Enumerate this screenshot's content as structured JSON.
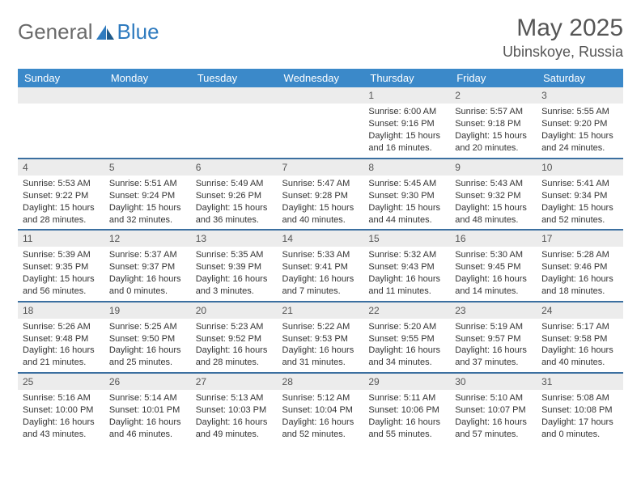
{
  "brand": {
    "name1": "General",
    "name2": "Blue"
  },
  "title": "May 2025",
  "location": "Ubinskoye, Russia",
  "colors": {
    "header_bg": "#3b89c9",
    "row_border": "#3b6fa0",
    "daynum_bg": "#ececec",
    "logo_gray": "#6a6a6a",
    "logo_blue": "#2f7bbf"
  },
  "day_headers": [
    "Sunday",
    "Monday",
    "Tuesday",
    "Wednesday",
    "Thursday",
    "Friday",
    "Saturday"
  ],
  "weeks": [
    [
      null,
      null,
      null,
      null,
      {
        "n": "1",
        "sr": "Sunrise: 6:00 AM",
        "ss": "Sunset: 9:16 PM",
        "dl": "Daylight: 15 hours and 16 minutes."
      },
      {
        "n": "2",
        "sr": "Sunrise: 5:57 AM",
        "ss": "Sunset: 9:18 PM",
        "dl": "Daylight: 15 hours and 20 minutes."
      },
      {
        "n": "3",
        "sr": "Sunrise: 5:55 AM",
        "ss": "Sunset: 9:20 PM",
        "dl": "Daylight: 15 hours and 24 minutes."
      }
    ],
    [
      {
        "n": "4",
        "sr": "Sunrise: 5:53 AM",
        "ss": "Sunset: 9:22 PM",
        "dl": "Daylight: 15 hours and 28 minutes."
      },
      {
        "n": "5",
        "sr": "Sunrise: 5:51 AM",
        "ss": "Sunset: 9:24 PM",
        "dl": "Daylight: 15 hours and 32 minutes."
      },
      {
        "n": "6",
        "sr": "Sunrise: 5:49 AM",
        "ss": "Sunset: 9:26 PM",
        "dl": "Daylight: 15 hours and 36 minutes."
      },
      {
        "n": "7",
        "sr": "Sunrise: 5:47 AM",
        "ss": "Sunset: 9:28 PM",
        "dl": "Daylight: 15 hours and 40 minutes."
      },
      {
        "n": "8",
        "sr": "Sunrise: 5:45 AM",
        "ss": "Sunset: 9:30 PM",
        "dl": "Daylight: 15 hours and 44 minutes."
      },
      {
        "n": "9",
        "sr": "Sunrise: 5:43 AM",
        "ss": "Sunset: 9:32 PM",
        "dl": "Daylight: 15 hours and 48 minutes."
      },
      {
        "n": "10",
        "sr": "Sunrise: 5:41 AM",
        "ss": "Sunset: 9:34 PM",
        "dl": "Daylight: 15 hours and 52 minutes."
      }
    ],
    [
      {
        "n": "11",
        "sr": "Sunrise: 5:39 AM",
        "ss": "Sunset: 9:35 PM",
        "dl": "Daylight: 15 hours and 56 minutes."
      },
      {
        "n": "12",
        "sr": "Sunrise: 5:37 AM",
        "ss": "Sunset: 9:37 PM",
        "dl": "Daylight: 16 hours and 0 minutes."
      },
      {
        "n": "13",
        "sr": "Sunrise: 5:35 AM",
        "ss": "Sunset: 9:39 PM",
        "dl": "Daylight: 16 hours and 3 minutes."
      },
      {
        "n": "14",
        "sr": "Sunrise: 5:33 AM",
        "ss": "Sunset: 9:41 PM",
        "dl": "Daylight: 16 hours and 7 minutes."
      },
      {
        "n": "15",
        "sr": "Sunrise: 5:32 AM",
        "ss": "Sunset: 9:43 PM",
        "dl": "Daylight: 16 hours and 11 minutes."
      },
      {
        "n": "16",
        "sr": "Sunrise: 5:30 AM",
        "ss": "Sunset: 9:45 PM",
        "dl": "Daylight: 16 hours and 14 minutes."
      },
      {
        "n": "17",
        "sr": "Sunrise: 5:28 AM",
        "ss": "Sunset: 9:46 PM",
        "dl": "Daylight: 16 hours and 18 minutes."
      }
    ],
    [
      {
        "n": "18",
        "sr": "Sunrise: 5:26 AM",
        "ss": "Sunset: 9:48 PM",
        "dl": "Daylight: 16 hours and 21 minutes."
      },
      {
        "n": "19",
        "sr": "Sunrise: 5:25 AM",
        "ss": "Sunset: 9:50 PM",
        "dl": "Daylight: 16 hours and 25 minutes."
      },
      {
        "n": "20",
        "sr": "Sunrise: 5:23 AM",
        "ss": "Sunset: 9:52 PM",
        "dl": "Daylight: 16 hours and 28 minutes."
      },
      {
        "n": "21",
        "sr": "Sunrise: 5:22 AM",
        "ss": "Sunset: 9:53 PM",
        "dl": "Daylight: 16 hours and 31 minutes."
      },
      {
        "n": "22",
        "sr": "Sunrise: 5:20 AM",
        "ss": "Sunset: 9:55 PM",
        "dl": "Daylight: 16 hours and 34 minutes."
      },
      {
        "n": "23",
        "sr": "Sunrise: 5:19 AM",
        "ss": "Sunset: 9:57 PM",
        "dl": "Daylight: 16 hours and 37 minutes."
      },
      {
        "n": "24",
        "sr": "Sunrise: 5:17 AM",
        "ss": "Sunset: 9:58 PM",
        "dl": "Daylight: 16 hours and 40 minutes."
      }
    ],
    [
      {
        "n": "25",
        "sr": "Sunrise: 5:16 AM",
        "ss": "Sunset: 10:00 PM",
        "dl": "Daylight: 16 hours and 43 minutes."
      },
      {
        "n": "26",
        "sr": "Sunrise: 5:14 AM",
        "ss": "Sunset: 10:01 PM",
        "dl": "Daylight: 16 hours and 46 minutes."
      },
      {
        "n": "27",
        "sr": "Sunrise: 5:13 AM",
        "ss": "Sunset: 10:03 PM",
        "dl": "Daylight: 16 hours and 49 minutes."
      },
      {
        "n": "28",
        "sr": "Sunrise: 5:12 AM",
        "ss": "Sunset: 10:04 PM",
        "dl": "Daylight: 16 hours and 52 minutes."
      },
      {
        "n": "29",
        "sr": "Sunrise: 5:11 AM",
        "ss": "Sunset: 10:06 PM",
        "dl": "Daylight: 16 hours and 55 minutes."
      },
      {
        "n": "30",
        "sr": "Sunrise: 5:10 AM",
        "ss": "Sunset: 10:07 PM",
        "dl": "Daylight: 16 hours and 57 minutes."
      },
      {
        "n": "31",
        "sr": "Sunrise: 5:08 AM",
        "ss": "Sunset: 10:08 PM",
        "dl": "Daylight: 17 hours and 0 minutes."
      }
    ]
  ]
}
